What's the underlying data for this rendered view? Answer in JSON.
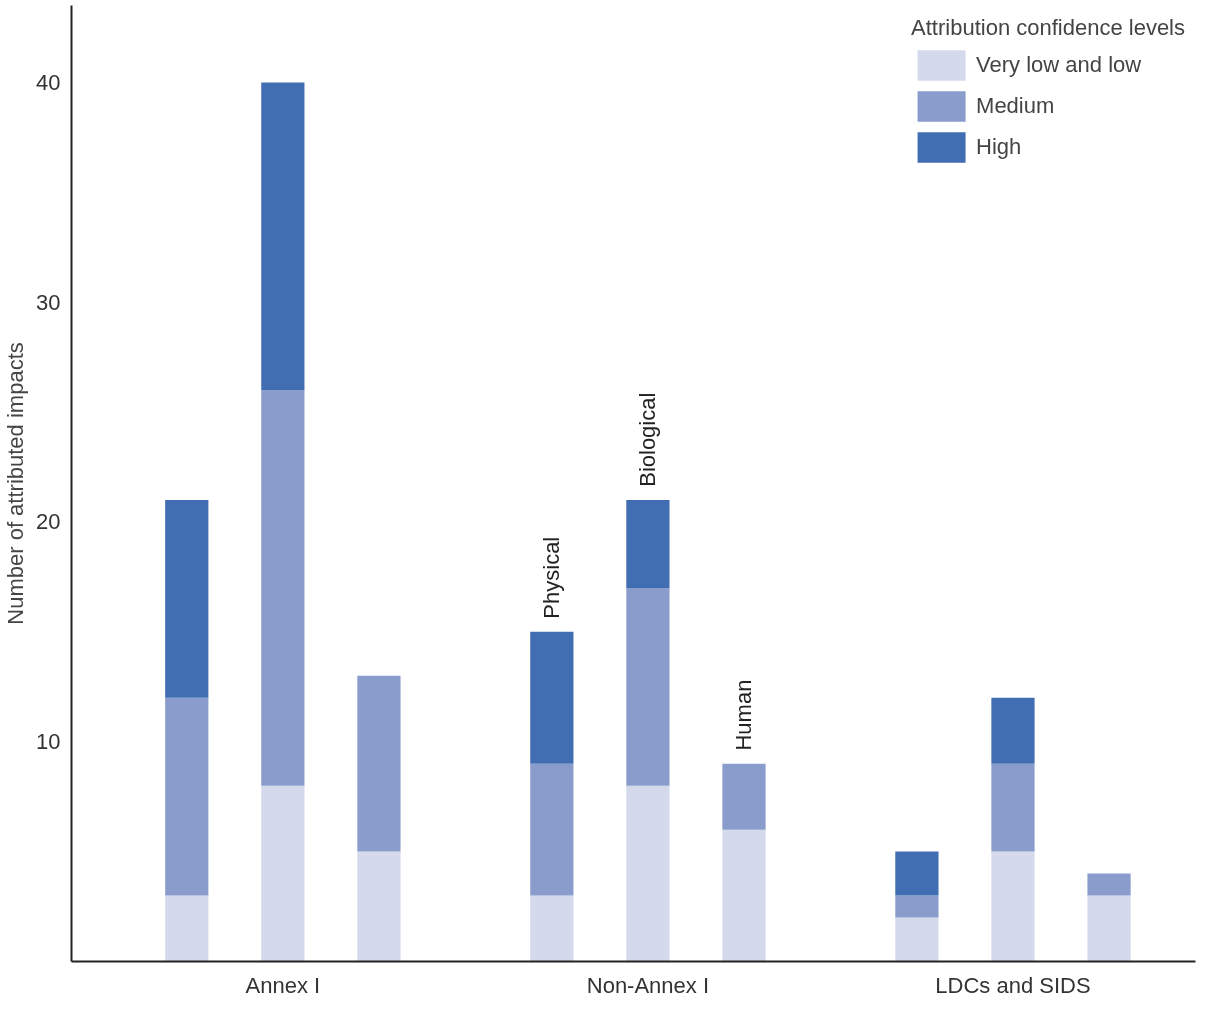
{
  "chart_data": {
    "type": "bar",
    "stacked": true,
    "ylabel": "Number of attributed impacts",
    "legend_title": "Attribution confidence levels",
    "legend": "top right",
    "grid": false,
    "categories": [
      null,
      null,
      null,
      "Physical",
      "Biological",
      "Human",
      null,
      null,
      null
    ],
    "annotations": [
      "Annex I",
      "Non-Annex I",
      "LDCs and SIDS"
    ],
    "ylim": [
      0,
      43.5
    ],
    "yticks": [
      10,
      20,
      30,
      40
    ],
    "series": [
      {
        "name": "Very low and low",
        "color": "#d4d9ec",
        "values": [
          3,
          8,
          5,
          3,
          8,
          6,
          2,
          5,
          3
        ]
      },
      {
        "name": "Medium",
        "color": "#8a9ccc",
        "values": [
          9,
          18,
          8,
          6,
          9,
          3,
          1,
          4,
          1
        ]
      },
      {
        "name": "High",
        "color": "#416db3",
        "values": [
          9,
          14,
          0,
          6,
          4,
          0,
          2,
          3,
          0
        ]
      }
    ]
  }
}
